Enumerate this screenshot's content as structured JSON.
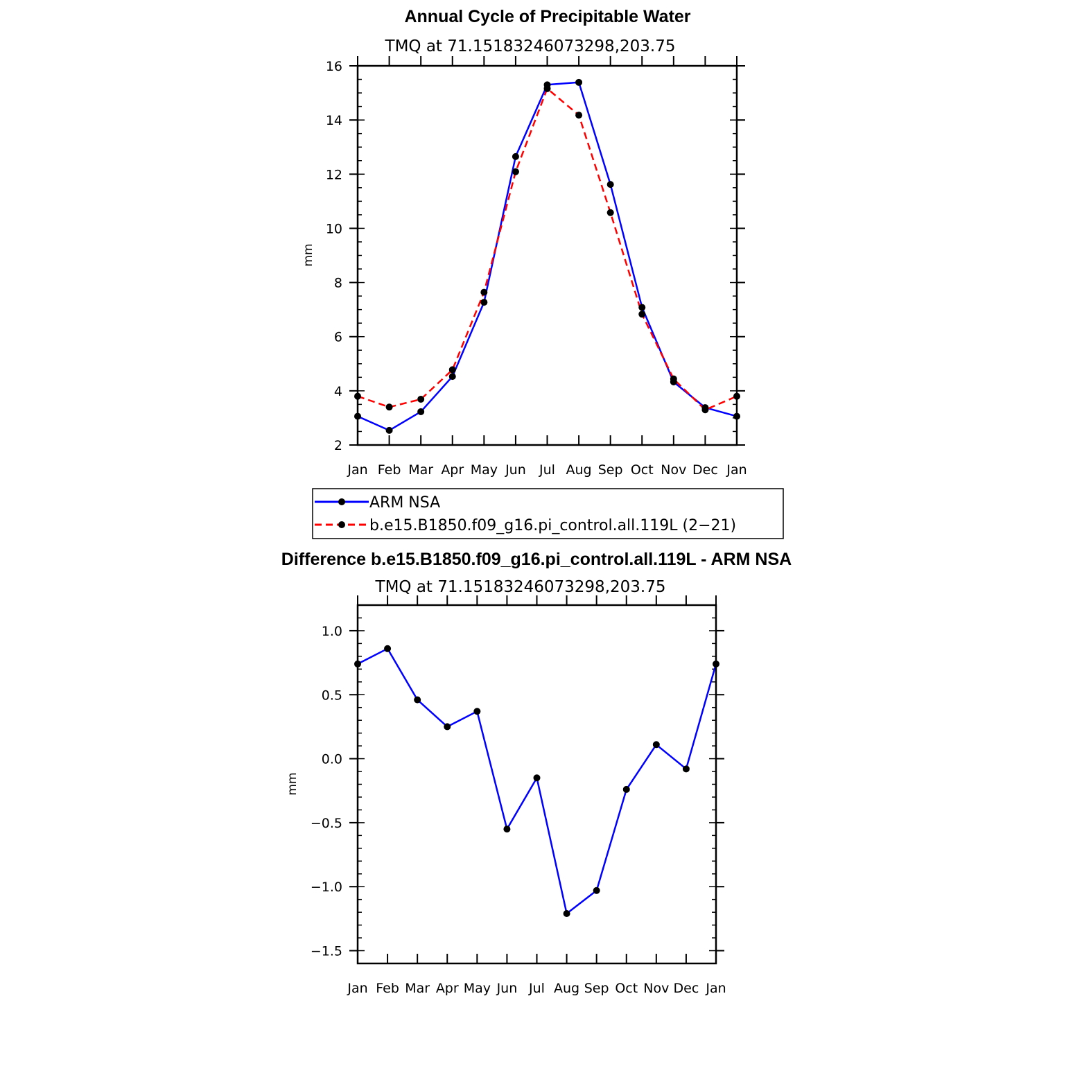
{
  "colors": {
    "series_obs": "#0000ff",
    "series_model": "#ff0000",
    "marker": "#000000",
    "axis": "#000000",
    "background": "#ffffff"
  },
  "chart_data": [
    {
      "type": "line",
      "title": "Annual Cycle of Precipitable Water",
      "subtitle": "TMQ at 71.15183246073298,203.75",
      "xlabel": "",
      "ylabel": "mm",
      "categories": [
        "Jan",
        "Feb",
        "Mar",
        "Apr",
        "May",
        "Jun",
        "Jul",
        "Aug",
        "Sep",
        "Oct",
        "Nov",
        "Dec",
        "Jan"
      ],
      "ylim": [
        2,
        16
      ],
      "yticks": [
        2,
        4,
        6,
        8,
        10,
        12,
        14,
        16
      ],
      "ytick_labels": [
        "2",
        "4",
        "6",
        "8",
        "10",
        "12",
        "14",
        "16"
      ],
      "series": [
        {
          "name": "ARM NSA",
          "style": "solid",
          "color": "#0000ff",
          "values": [
            3.06,
            2.54,
            3.23,
            4.53,
            7.27,
            12.65,
            15.3,
            15.39,
            11.62,
            7.08,
            4.33,
            3.38,
            3.06
          ]
        },
        {
          "name": "b.e15.B1850.f09_g16.pi_control.all.119L (2−21)",
          "style": "dashed",
          "color": "#ff0000",
          "values": [
            3.8,
            3.4,
            3.69,
            4.78,
            7.64,
            12.09,
            15.16,
            14.18,
            10.58,
            6.83,
            4.44,
            3.3,
            3.8
          ]
        }
      ],
      "legend": {
        "placement": "bottom-center",
        "entries": [
          "ARM NSA",
          "b.e15.B1850.f09_g16.pi_control.all.119L (2−21)"
        ]
      }
    },
    {
      "type": "line",
      "title": "Difference b.e15.B1850.f09_g16.pi_control.all.119L - ARM NSA",
      "subtitle": "TMQ at 71.15183246073298,203.75",
      "xlabel": "",
      "ylabel": "mm",
      "categories": [
        "Jan",
        "Feb",
        "Mar",
        "Apr",
        "May",
        "Jun",
        "Jul",
        "Aug",
        "Sep",
        "Oct",
        "Nov",
        "Dec",
        "Jan"
      ],
      "ylim": [
        -1.6,
        1.2
      ],
      "yticks": [
        -1.5,
        -1.0,
        -0.5,
        0.0,
        0.5,
        1.0
      ],
      "ytick_labels": [
        "−1.5",
        "−1.0",
        "−0.5",
        "0.0",
        "0.5",
        "1.0"
      ],
      "series": [
        {
          "name": "Difference",
          "style": "solid",
          "color": "#0000ff",
          "values": [
            0.74,
            0.86,
            0.46,
            0.25,
            0.37,
            -0.55,
            -0.15,
            -1.21,
            -1.03,
            -0.24,
            0.11,
            -0.08,
            0.74
          ]
        }
      ]
    }
  ]
}
